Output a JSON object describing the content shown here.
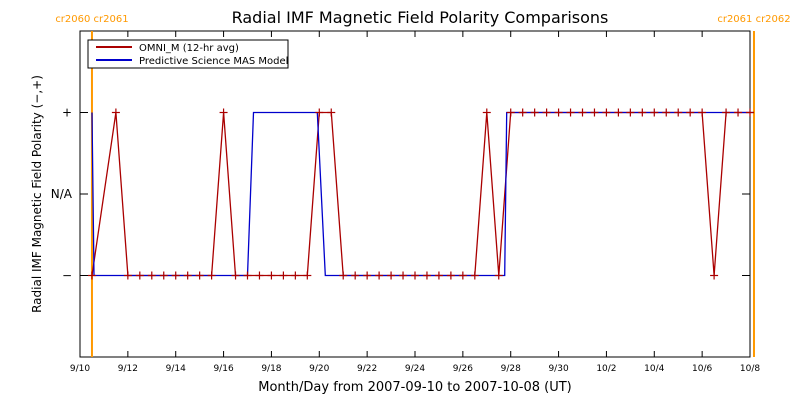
{
  "chart_data": {
    "type": "line",
    "title": "Radial IMF Magnetic Field Polarity Comparisons",
    "xlabel": "Month/Day from 2007-09-10 to 2007-10-08 (UT)",
    "ylabel": "Radial IMF Magnetic Field Polarity (−,+)",
    "x_unit": "day",
    "xlim": [
      "2007-09-10",
      "2007-10-08"
    ],
    "ylim": [
      -2,
      2
    ],
    "x_ticks": [
      {
        "day": "2007-09-10",
        "label": "9/10"
      },
      {
        "day": "2007-09-12",
        "label": "9/12"
      },
      {
        "day": "2007-09-14",
        "label": "9/14"
      },
      {
        "day": "2007-09-16",
        "label": "9/16"
      },
      {
        "day": "2007-09-18",
        "label": "9/18"
      },
      {
        "day": "2007-09-20",
        "label": "9/20"
      },
      {
        "day": "2007-09-22",
        "label": "9/22"
      },
      {
        "day": "2007-09-24",
        "label": "9/24"
      },
      {
        "day": "2007-09-26",
        "label": "9/26"
      },
      {
        "day": "2007-09-28",
        "label": "9/28"
      },
      {
        "day": "2007-09-30",
        "label": "9/30"
      },
      {
        "day": "2007-10-02",
        "label": "10/2"
      },
      {
        "day": "2007-10-04",
        "label": "10/4"
      },
      {
        "day": "2007-10-06",
        "label": "10/6"
      },
      {
        "day": "2007-10-08",
        "label": "10/8"
      }
    ],
    "y_ticks": [
      {
        "value": 1,
        "label": "+"
      },
      {
        "value": 0,
        "label": "N/A"
      },
      {
        "value": -1,
        "label": "−"
      }
    ],
    "legend": {
      "placement": "top-left"
    },
    "carrington_markers": [
      {
        "day": "2007-09-10 12:00",
        "label": "cr2060 cr2061",
        "color": "#ff9900"
      },
      {
        "day": "2007-10-08 04:00",
        "label": "cr2061 cr2062",
        "color": "#ff9900"
      }
    ],
    "series": [
      {
        "name": "OMNI_M (12-hr avg)",
        "color": "#aa0000",
        "marker": "+",
        "points": [
          [
            "2007-09-10 12:00",
            -1
          ],
          [
            "2007-09-11 12:00",
            1
          ],
          [
            "2007-09-12 00:00",
            -1
          ],
          [
            "2007-09-12 12:00",
            -1
          ],
          [
            "2007-09-13 00:00",
            -1
          ],
          [
            "2007-09-13 12:00",
            -1
          ],
          [
            "2007-09-14 00:00",
            -1
          ],
          [
            "2007-09-14 12:00",
            -1
          ],
          [
            "2007-09-15 00:00",
            -1
          ],
          [
            "2007-09-15 12:00",
            -1
          ],
          [
            "2007-09-16 00:00",
            1
          ],
          [
            "2007-09-16 12:00",
            -1
          ],
          [
            "2007-09-17 00:00",
            -1
          ],
          [
            "2007-09-17 12:00",
            -1
          ],
          [
            "2007-09-18 00:00",
            -1
          ],
          [
            "2007-09-18 12:00",
            -1
          ],
          [
            "2007-09-19 00:00",
            -1
          ],
          [
            "2007-09-19 12:00",
            -1
          ],
          [
            "2007-09-20 00:00",
            1
          ],
          [
            "2007-09-20 12:00",
            1
          ],
          [
            "2007-09-21 00:00",
            -1
          ],
          [
            "2007-09-21 12:00",
            -1
          ],
          [
            "2007-09-22 00:00",
            -1
          ],
          [
            "2007-09-22 12:00",
            -1
          ],
          [
            "2007-09-23 00:00",
            -1
          ],
          [
            "2007-09-23 12:00",
            -1
          ],
          [
            "2007-09-24 00:00",
            -1
          ],
          [
            "2007-09-24 12:00",
            -1
          ],
          [
            "2007-09-25 00:00",
            -1
          ],
          [
            "2007-09-25 12:00",
            -1
          ],
          [
            "2007-09-26 00:00",
            -1
          ],
          [
            "2007-09-26 12:00",
            -1
          ],
          [
            "2007-09-27 00:00",
            1
          ],
          [
            "2007-09-27 12:00",
            -1
          ],
          [
            "2007-09-28 00:00",
            1
          ],
          [
            "2007-09-28 12:00",
            1
          ],
          [
            "2007-09-29 00:00",
            1
          ],
          [
            "2007-09-29 12:00",
            1
          ],
          [
            "2007-09-30 00:00",
            1
          ],
          [
            "2007-09-30 12:00",
            1
          ],
          [
            "2007-10-01 00:00",
            1
          ],
          [
            "2007-10-01 12:00",
            1
          ],
          [
            "2007-10-02 00:00",
            1
          ],
          [
            "2007-10-02 12:00",
            1
          ],
          [
            "2007-10-03 00:00",
            1
          ],
          [
            "2007-10-03 12:00",
            1
          ],
          [
            "2007-10-04 00:00",
            1
          ],
          [
            "2007-10-04 12:00",
            1
          ],
          [
            "2007-10-05 00:00",
            1
          ],
          [
            "2007-10-05 12:00",
            1
          ],
          [
            "2007-10-06 00:00",
            1
          ],
          [
            "2007-10-06 12:00",
            -1
          ],
          [
            "2007-10-07 00:00",
            1
          ],
          [
            "2007-10-07 12:00",
            1
          ],
          [
            "2007-10-08 00:00",
            1
          ]
        ]
      },
      {
        "name": "Predictive Science MAS Model",
        "color": "#0000cc",
        "points": [
          [
            "2007-09-10 12:00",
            1
          ],
          [
            "2007-09-10 14:00",
            -1
          ],
          [
            "2007-09-17 00:00",
            -1
          ],
          [
            "2007-09-17 06:00",
            1
          ],
          [
            "2007-09-19 22:00",
            1
          ],
          [
            "2007-09-20 06:00",
            -1
          ],
          [
            "2007-09-27 18:00",
            -1
          ],
          [
            "2007-09-27 20:00",
            1
          ],
          [
            "2007-10-08 04:00",
            1
          ]
        ]
      }
    ]
  }
}
